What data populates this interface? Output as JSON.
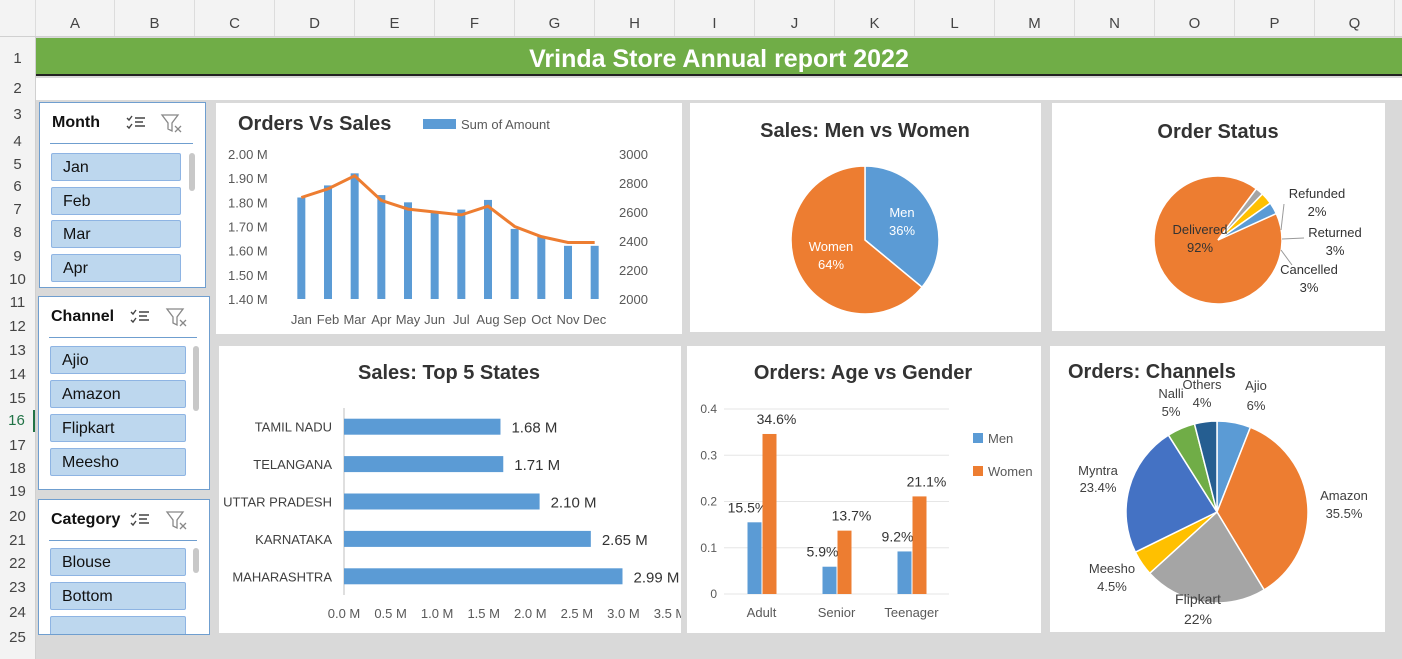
{
  "columns": [
    "A",
    "B",
    "C",
    "D",
    "E",
    "F",
    "G",
    "H",
    "I",
    "J",
    "K",
    "L",
    "M",
    "N",
    "O",
    "P",
    "Q"
  ],
  "rows": [
    "1",
    "2",
    "3",
    "4",
    "5",
    "6",
    "7",
    "8",
    "9",
    "10",
    "11",
    "12",
    "13",
    "14",
    "15",
    "16",
    "17",
    "18",
    "19",
    "20",
    "21",
    "22",
    "23",
    "24",
    "25"
  ],
  "selected_row": "16",
  "banner_title": "Vrinda Store Annual report 2022",
  "colors": {
    "blue": "#5b9bd5",
    "orange": "#ed7d31",
    "gray": "#a5a5a5",
    "yellow": "#ffc000",
    "darkblue": "#4472c4",
    "green": "#70ad47",
    "navy": "#255e91",
    "banner": "#70ad47"
  },
  "slicers": [
    {
      "title": "Month",
      "items": [
        "Jan",
        "Feb",
        "Mar",
        "Apr"
      ]
    },
    {
      "title": "Channel",
      "items": [
        "Ajio",
        "Amazon",
        "Flipkart",
        "Meesho"
      ]
    },
    {
      "title": "Category",
      "items": [
        "Blouse",
        "Bottom"
      ]
    }
  ],
  "charts": {
    "orders_vs_sales": {
      "title": "Orders Vs Sales",
      "legend": "Sum of Amount"
    },
    "men_women": {
      "title": "Sales: Men vs Women"
    },
    "order_status": {
      "title": "Order Status"
    },
    "top_states": {
      "title": "Sales: Top 5 States"
    },
    "age_gender": {
      "title": "Orders: Age vs Gender"
    },
    "channels": {
      "title": "Orders: Channels"
    }
  },
  "chart_data": [
    {
      "type": "bar",
      "title": "Orders Vs Sales",
      "categories": [
        "Jan",
        "Feb",
        "Mar",
        "Apr",
        "May",
        "Jun",
        "Jul",
        "Aug",
        "Sep",
        "Oct",
        "Nov",
        "Dec"
      ],
      "series": [
        {
          "name": "Sum of Amount",
          "values": [
            1.82,
            1.87,
            1.92,
            1.83,
            1.8,
            1.76,
            1.77,
            1.81,
            1.69,
            1.66,
            1.62,
            1.62
          ]
        },
        {
          "values": [
            2700,
            2760,
            2850,
            2680,
            2620,
            2600,
            2580,
            2640,
            2500,
            2430,
            2390,
            2390
          ]
        }
      ],
      "ylim": [
        1.4,
        2.0
      ],
      "y_ticks": [
        "2.00 M",
        "1.90 M",
        "1.80 M",
        "1.70 M",
        "1.60 M",
        "1.50 M",
        "1.40 M"
      ],
      "y2lim": [
        2000,
        3000
      ],
      "y2_ticks": [
        "3000",
        "2800",
        "2600",
        "2400",
        "2200",
        "2000"
      ],
      "legend": "top"
    },
    {
      "type": "pie",
      "title": "Sales: Men vs Women",
      "labels": [
        "Men",
        "Women"
      ],
      "values": [
        36,
        64
      ],
      "value_labels": [
        "36%",
        "64%"
      ]
    },
    {
      "type": "pie",
      "title": "Order Status",
      "labels": [
        "Delivered",
        "Refunded",
        "Returned",
        "Cancelled"
      ],
      "values": [
        92,
        2,
        3,
        3
      ],
      "value_labels": [
        "92%",
        "2%",
        "3%",
        "3%"
      ]
    },
    {
      "type": "bar",
      "orientation": "horizontal",
      "title": "Sales: Top 5 States",
      "categories": [
        "TAMIL NADU",
        "TELANGANA",
        "UTTAR PRADESH",
        "KARNATAKA",
        "MAHARASHTRA"
      ],
      "values": [
        1.68,
        1.71,
        2.1,
        2.65,
        2.99
      ],
      "value_labels": [
        "1.68 M",
        "1.71 M",
        "2.10 M",
        "2.65 M",
        "2.99 M"
      ],
      "xlim": [
        0,
        3.5
      ],
      "x_ticks": [
        "0.0 M",
        "0.5 M",
        "1.0 M",
        "1.5 M",
        "2.0 M",
        "2.5 M",
        "3.0 M",
        "3.5 M"
      ]
    },
    {
      "type": "bar",
      "title": "Orders: Age vs Gender",
      "categories": [
        "Adult",
        "Senior",
        "Teenager"
      ],
      "series": [
        {
          "name": "Men",
          "values": [
            0.155,
            0.059,
            0.092
          ],
          "labels": [
            "15.5%",
            "5.9%",
            "9.2%"
          ]
        },
        {
          "name": "Women",
          "values": [
            0.346,
            0.137,
            0.211
          ],
          "labels": [
            "34.6%",
            "13.7%",
            "21.1%"
          ]
        }
      ],
      "ylim": [
        0,
        0.4
      ],
      "y_ticks": [
        "0.4",
        "0.3",
        "0.2",
        "0.1",
        "0"
      ],
      "legend": "right"
    },
    {
      "type": "pie",
      "title": "Orders: Channels",
      "labels": [
        "Ajio",
        "Amazon",
        "Flipkart",
        "Meesho",
        "Myntra",
        "Nalli",
        "Others"
      ],
      "values": [
        6,
        35.5,
        22,
        4.5,
        23.4,
        5,
        4
      ],
      "value_labels": [
        "6%",
        "35.5%",
        "22%",
        "4.5%",
        "23.4%",
        "5%",
        "4%"
      ]
    }
  ]
}
